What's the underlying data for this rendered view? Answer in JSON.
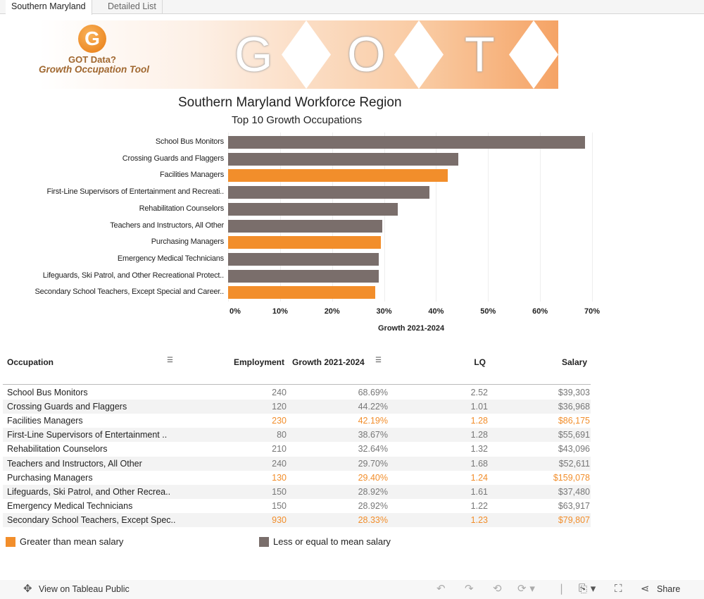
{
  "tabs": [
    {
      "label": "Southern Maryland",
      "active": true
    },
    {
      "label": "Detailed List",
      "active": false
    }
  ],
  "banner": {
    "logo_letter": "G",
    "logo_line1": "GOT Data?",
    "logo_line2": "Growth Occupation Tool",
    "letters": [
      "G",
      "O",
      "T"
    ]
  },
  "title": "Southern Maryland Workforce Region",
  "subtitle": "Top 10 Growth Occupations",
  "colors": {
    "above_mean": "#f28e2b",
    "below_mean": "#7a6e6b"
  },
  "chart_data": {
    "type": "bar",
    "orientation": "horizontal",
    "categories": [
      "School Bus Monitors",
      "Crossing Guards and Flaggers",
      "Facilities Managers",
      "First-Line Supervisors of Entertainment and Recreati..",
      "Rehabilitation Counselors",
      "Teachers and Instructors, All Other",
      "Purchasing Managers",
      "Emergency Medical Technicians",
      "Lifeguards, Ski Patrol, and Other Recreational Protect..",
      "Secondary School Teachers, Except Special and Career.."
    ],
    "values": [
      68.69,
      44.22,
      42.19,
      38.67,
      32.64,
      29.7,
      29.4,
      28.92,
      28.92,
      28.33
    ],
    "highlight": [
      false,
      false,
      true,
      false,
      false,
      false,
      true,
      false,
      false,
      true
    ],
    "xlabel": "Growth 2021-2024",
    "xlim": [
      0,
      70
    ],
    "ticks": [
      "0%",
      "10%",
      "20%",
      "30%",
      "40%",
      "50%",
      "60%",
      "70%"
    ],
    "grid": true
  },
  "table": {
    "headers": {
      "occupation": "Occupation",
      "employment": "Employment",
      "growth": "Growth 2021-2024",
      "lq": "LQ",
      "salary": "Salary"
    },
    "rows": [
      {
        "occupation": "School Bus Monitors",
        "employment": "240",
        "growth": "68.69%",
        "lq": "2.52",
        "salary": "$39,303",
        "above_mean": false
      },
      {
        "occupation": "Crossing Guards and Flaggers",
        "employment": "120",
        "growth": "44.22%",
        "lq": "1.01",
        "salary": "$36,968",
        "above_mean": false
      },
      {
        "occupation": "Facilities Managers",
        "employment": "230",
        "growth": "42.19%",
        "lq": "1.28",
        "salary": "$86,175",
        "above_mean": true
      },
      {
        "occupation": "First-Line Supervisors of Entertainment ..",
        "employment": "80",
        "growth": "38.67%",
        "lq": "1.28",
        "salary": "$55,691",
        "above_mean": false
      },
      {
        "occupation": "Rehabilitation Counselors",
        "employment": "210",
        "growth": "32.64%",
        "lq": "1.32",
        "salary": "$43,096",
        "above_mean": false
      },
      {
        "occupation": "Teachers and Instructors, All Other",
        "employment": "240",
        "growth": "29.70%",
        "lq": "1.68",
        "salary": "$52,611",
        "above_mean": false
      },
      {
        "occupation": "Purchasing Managers",
        "employment": "130",
        "growth": "29.40%",
        "lq": "1.24",
        "salary": "$159,078",
        "above_mean": true
      },
      {
        "occupation": "Lifeguards, Ski Patrol, and Other Recrea..",
        "employment": "150",
        "growth": "28.92%",
        "lq": "1.61",
        "salary": "$37,480",
        "above_mean": false
      },
      {
        "occupation": "Emergency Medical Technicians",
        "employment": "150",
        "growth": "28.92%",
        "lq": "1.22",
        "salary": "$63,917",
        "above_mean": false
      },
      {
        "occupation": "Secondary School Teachers, Except Spec..",
        "employment": "930",
        "growth": "28.33%",
        "lq": "1.23",
        "salary": "$79,807",
        "above_mean": true
      }
    ]
  },
  "legend": {
    "above": "Greater than mean salary",
    "below": "Less or equal to mean salary"
  },
  "footer": {
    "view_label": "View on Tableau Public",
    "share_label": "Share"
  }
}
